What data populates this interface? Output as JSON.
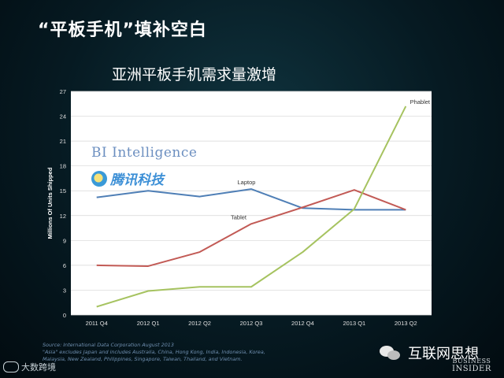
{
  "slide_title": "“平板手机”填补空白",
  "brand_bi": "BI Intelligence",
  "brand_tencent": "腾讯科技",
  "source_lines": [
    "Source: International Data Corporation August 2013",
    "\"Asia\" excludes Japan and includes Australia, China, Hong Kong, India, Indonesia, Korea,",
    "Malaysia, New Zealand, Philippines, Singapore, Taiwan, Thailand, and Vietnam."
  ],
  "watermark_left": "大数跨境",
  "watermark_right": "互联网思想",
  "bi_insider_top": "BUSINESS",
  "bi_insider_bottom": "INSIDER",
  "colors": {
    "laptop": "#4f7fb6",
    "tablet": "#c25a55",
    "phablet": "#a6c360",
    "plot_bg": "#ffffff",
    "grid": "#d5d5d5"
  },
  "chart_data": {
    "type": "line",
    "title": "亚洲平板手机需求量激增",
    "xlabel": "",
    "ylabel": "Millions Of Units Shipped",
    "categories": [
      "2011 Q4",
      "2012 Q1",
      "2012 Q2",
      "2012 Q3",
      "2012 Q4",
      "2013 Q1",
      "2013 Q2"
    ],
    "ylim": [
      0,
      27
    ],
    "yticks": [
      0,
      3,
      6,
      9,
      12,
      15,
      18,
      21,
      24,
      27
    ],
    "grid": true,
    "series": [
      {
        "name": "Laptop",
        "values": [
          14.2,
          15.0,
          14.3,
          15.2,
          12.9,
          12.7,
          12.7
        ]
      },
      {
        "name": "Tablet",
        "values": [
          6.0,
          5.9,
          7.6,
          11.0,
          13.0,
          15.1,
          12.7
        ]
      },
      {
        "name": "Phablet",
        "values": [
          1.0,
          2.9,
          3.4,
          3.4,
          7.6,
          12.8,
          25.2
        ]
      }
    ]
  }
}
